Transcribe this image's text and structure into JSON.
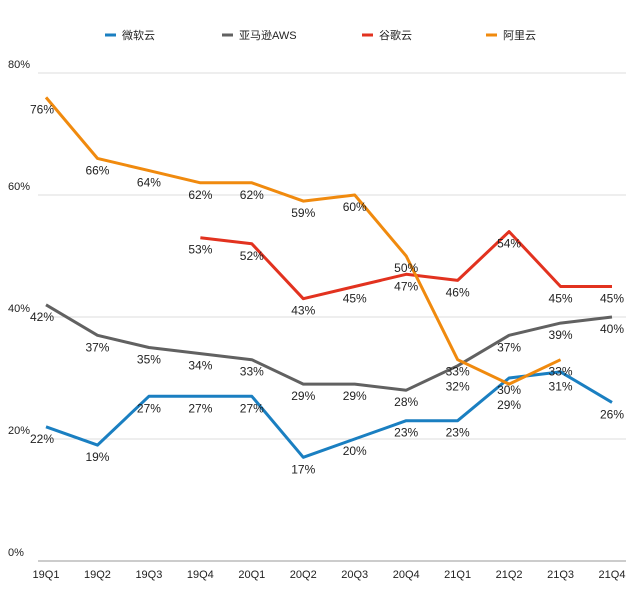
{
  "chart_data": {
    "type": "line",
    "title": "",
    "xlabel": "",
    "ylabel": "",
    "categories": [
      "19Q1",
      "19Q2",
      "19Q3",
      "19Q4",
      "20Q1",
      "20Q2",
      "20Q3",
      "20Q4",
      "21Q1",
      "21Q2",
      "21Q3",
      "21Q4"
    ],
    "yticks": [
      "0%",
      "20%",
      "40%",
      "60%",
      "80%"
    ],
    "ylim": [
      0,
      80
    ],
    "grid": true,
    "legend_position": "top",
    "series": [
      {
        "name": "微软云",
        "color": "#1a7fc1",
        "values": [
          22,
          19,
          27,
          27,
          27,
          17,
          20,
          23,
          23,
          30,
          31,
          26
        ]
      },
      {
        "name": "亚马逊AWS",
        "color": "#616161",
        "values": [
          42,
          37,
          35,
          34,
          33,
          29,
          29,
          28,
          32,
          37,
          39,
          40
        ]
      },
      {
        "name": "谷歌云",
        "color": "#e2321f",
        "values": [
          null,
          null,
          null,
          53,
          52,
          43,
          45,
          47,
          46,
          54,
          45,
          45
        ]
      },
      {
        "name": "阿里云",
        "color": "#f08a0e",
        "values": [
          76,
          66,
          64,
          62,
          62,
          59,
          60,
          50,
          33,
          29,
          33,
          null
        ]
      }
    ]
  }
}
